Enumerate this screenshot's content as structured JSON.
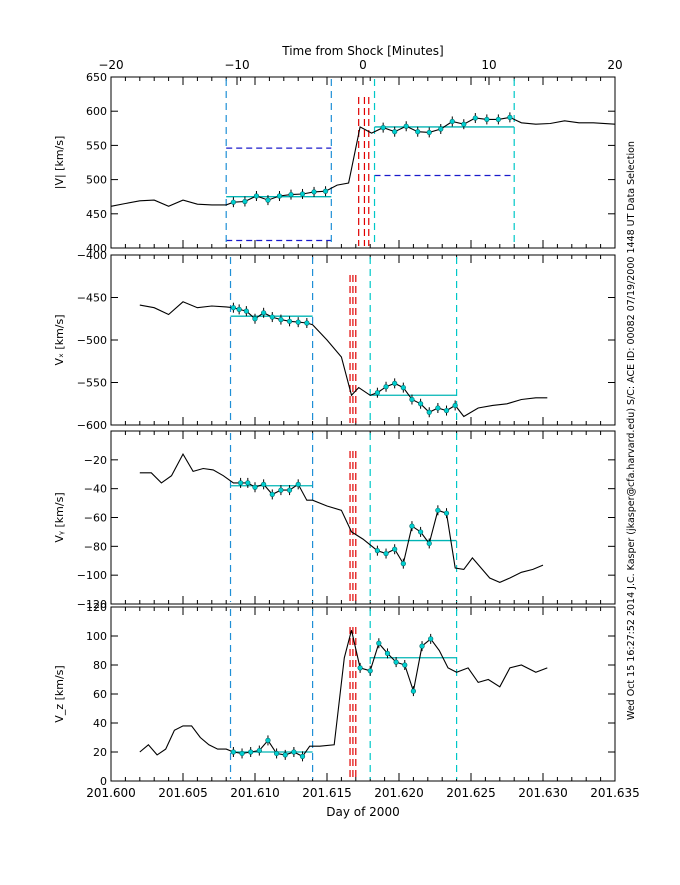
{
  "figure": {
    "top_axis_title": "Time from Shock [Minutes]",
    "bottom_axis_title": "Day of 2000",
    "side_text": "Wed Oct 15 16:27:52 2014   J.C. Kasper (jkasper@cfa.harvard.edu)   S/C: ACE ID: 00082 07/19/2000   1448 UT Data Selection",
    "top_ticks": [
      "−20",
      "−10",
      "0",
      "10",
      "20"
    ],
    "top_tick_values": [
      -20,
      -10,
      0,
      10,
      20
    ],
    "bottom_ticks": [
      "201.600",
      "201.605",
      "201.610",
      "201.615",
      "201.620",
      "201.625",
      "201.630",
      "201.635"
    ],
    "bottom_tick_values": [
      201.6,
      201.605,
      201.61,
      201.615,
      201.62,
      201.625,
      201.63,
      201.635
    ],
    "colors": {
      "trace": "#000000",
      "upstream_window": "#1f8fd6",
      "downstream_window": "#00c8c8",
      "shock_marker": "#e00000",
      "range_guide": "#1a1acc",
      "fit_line": "#00b4b4"
    }
  },
  "chart_data": [
    {
      "type": "line",
      "id": "speed",
      "ylabel": "|V| [km/s]",
      "ylim": [
        400,
        650
      ],
      "yticks": [
        400,
        450,
        500,
        550,
        600,
        650
      ],
      "xlim": [
        201.6,
        201.635
      ],
      "series": [
        {
          "name": "|V|",
          "x": [
            201.6,
            201.601,
            201.602,
            201.603,
            201.604,
            201.605,
            201.606,
            201.607,
            201.608,
            201.6085,
            201.6093,
            201.6101,
            201.6109,
            201.6117,
            201.6125,
            201.6133,
            201.6141,
            201.6149,
            201.6157,
            201.6165,
            201.6173,
            201.6181,
            201.6189,
            201.6197,
            201.6205,
            201.6213,
            201.6221,
            201.6229,
            201.6237,
            201.6245,
            201.6253,
            201.6261,
            201.6269,
            201.6277,
            201.6285,
            201.6295,
            201.6305,
            201.6315,
            201.6325,
            201.6335,
            201.635
          ],
          "values": [
            461,
            465,
            469,
            470,
            461,
            470,
            464,
            463,
            463,
            467,
            468,
            476,
            470,
            476,
            478,
            479,
            482,
            483,
            492,
            495,
            577,
            568,
            576,
            570,
            578,
            570,
            569,
            574,
            585,
            581,
            590,
            588,
            588,
            591,
            583,
            581,
            582,
            586,
            583,
            583,
            581
          ]
        }
      ],
      "upstream_points": {
        "x": [
          201.6085,
          201.6093,
          201.6101,
          201.6109,
          201.6117,
          201.6125,
          201.6133,
          201.6141,
          201.6149
        ],
        "values": [
          467,
          468,
          476,
          470,
          476,
          478,
          479,
          482,
          483
        ]
      },
      "downstream_points": {
        "x": [
          201.6189,
          201.6197,
          201.6205,
          201.6213,
          201.6221,
          201.6229,
          201.6237,
          201.6245,
          201.6253,
          201.6261,
          201.6269,
          201.6277
        ],
        "values": [
          576,
          570,
          578,
          570,
          569,
          574,
          585,
          581,
          590,
          588,
          588,
          591
        ]
      },
      "upstream_window": [
        201.608,
        201.6153
      ],
      "downstream_window": [
        201.6183,
        201.628
      ],
      "shock_markers": [
        201.6172,
        201.6176,
        201.6179
      ],
      "upstream_mean": 475,
      "downstream_mean": 577,
      "range_guides": [
        {
          "x": [
            201.608,
            201.6153
          ],
          "y": 546
        },
        {
          "x": [
            201.608,
            201.6153
          ],
          "y": 411
        },
        {
          "x": [
            201.6183,
            201.628
          ],
          "y": 506
        }
      ]
    },
    {
      "type": "line",
      "id": "vx",
      "ylabel": "Vₓ [km/s]",
      "ylim": [
        -600,
        -400
      ],
      "yticks": [
        -600,
        -550,
        -500,
        -450,
        -400
      ],
      "xlim": [
        201.6,
        201.635
      ],
      "series": [
        {
          "name": "Vx",
          "x": [
            201.602,
            201.603,
            201.604,
            201.605,
            201.606,
            201.607,
            201.608,
            201.6085,
            201.6089,
            201.6094,
            201.61,
            201.6106,
            201.6112,
            201.6118,
            201.6124,
            201.613,
            201.6136,
            201.614,
            201.615,
            201.616,
            201.6167,
            201.6172,
            201.618,
            201.6185,
            201.6191,
            201.6197,
            201.6203,
            201.6209,
            201.6215,
            201.6221,
            201.6227,
            201.6233,
            201.6239,
            201.6245,
            201.6255,
            201.6265,
            201.6275,
            201.6285,
            201.6295,
            201.6303
          ],
          "values": [
            -459,
            -462,
            -470,
            -455,
            -462,
            -460,
            -461,
            -462,
            -464,
            -466,
            -475,
            -468,
            -473,
            -476,
            -478,
            -479,
            -480,
            -482,
            -500,
            -520,
            -565,
            -556,
            -565,
            -562,
            -555,
            -551,
            -556,
            -570,
            -575,
            -585,
            -580,
            -583,
            -577,
            -590,
            -580,
            -577,
            -575,
            -570,
            -568,
            -568
          ]
        }
      ],
      "upstream_points": {
        "x": [
          201.6085,
          201.6089,
          201.6094,
          201.61,
          201.6106,
          201.6112,
          201.6118,
          201.6124,
          201.613,
          201.6136
        ],
        "values": [
          -462,
          -464,
          -466,
          -475,
          -468,
          -473,
          -476,
          -478,
          -479,
          -480
        ]
      },
      "downstream_points": {
        "x": [
          201.6185,
          201.6191,
          201.6197,
          201.6203,
          201.6209,
          201.6215,
          201.6221,
          201.6227,
          201.6233,
          201.6239
        ],
        "values": [
          -562,
          -555,
          -551,
          -556,
          -570,
          -575,
          -585,
          -580,
          -583,
          -577
        ]
      },
      "upstream_window": [
        201.6083,
        201.614
      ],
      "downstream_window": [
        201.618,
        201.624
      ],
      "shock_markers": [
        201.6166,
        201.6168,
        201.617
      ],
      "upstream_mean": -472,
      "downstream_mean": -565,
      "range_guides": []
    },
    {
      "type": "line",
      "id": "vy",
      "ylabel": "Vᵧ [km/s]",
      "ylim": [
        -120,
        0
      ],
      "yticks": [
        -120,
        -100,
        -80,
        -60,
        -40,
        -20
      ],
      "xlim": [
        201.6,
        201.635
      ],
      "series": [
        {
          "name": "Vy",
          "x": [
            201.602,
            201.6028,
            201.6035,
            201.6042,
            201.605,
            201.6057,
            201.6064,
            201.6071,
            201.6078,
            201.6085,
            201.609,
            201.6095,
            201.61,
            201.6106,
            201.6112,
            201.6118,
            201.6124,
            201.613,
            201.6136,
            201.614,
            201.615,
            201.616,
            201.6167,
            201.6175,
            201.6185,
            201.6191,
            201.6197,
            201.6203,
            201.6209,
            201.6215,
            201.6221,
            201.6227,
            201.6233,
            201.6239,
            201.6245,
            201.6251,
            201.6257,
            201.6263,
            201.627,
            201.6277,
            201.6285,
            201.6293,
            201.63
          ],
          "values": [
            -29,
            -29,
            -36,
            -31,
            -16,
            -28,
            -26,
            -27,
            -31,
            -36,
            -36,
            -36,
            -39,
            -37,
            -44,
            -41,
            -41,
            -37,
            -48,
            -48,
            -52,
            -55,
            -70,
            -75,
            -83,
            -85,
            -82,
            -92,
            -66,
            -70,
            -78,
            -55,
            -57,
            -95,
            -96,
            -88,
            -95,
            -102,
            -105,
            -102,
            -98,
            -96,
            -93
          ]
        }
      ],
      "upstream_points": {
        "x": [
          201.609,
          201.6095,
          201.61,
          201.6106,
          201.6112,
          201.6118,
          201.6124,
          201.613
        ],
        "values": [
          -36,
          -36,
          -39,
          -37,
          -44,
          -41,
          -41,
          -37
        ]
      },
      "downstream_points": {
        "x": [
          201.6185,
          201.6191,
          201.6197,
          201.6203,
          201.6209,
          201.6215,
          201.6221,
          201.6227,
          201.6233
        ],
        "values": [
          -83,
          -85,
          -82,
          -92,
          -66,
          -70,
          -78,
          -55,
          -57
        ]
      },
      "upstream_window": [
        201.6083,
        201.614
      ],
      "downstream_window": [
        201.618,
        201.624
      ],
      "shock_markers": [
        201.6166,
        201.6168,
        201.617
      ],
      "upstream_mean": -38,
      "downstream_mean": -76,
      "range_guides": []
    },
    {
      "type": "line",
      "id": "vz",
      "ylabel": "V_z [km/s]",
      "ylim": [
        0,
        120
      ],
      "yticks": [
        0,
        20,
        40,
        60,
        80,
        100,
        120
      ],
      "xlim": [
        201.6,
        201.635
      ],
      "series": [
        {
          "name": "Vz",
          "x": [
            201.602,
            201.6026,
            201.6032,
            201.6038,
            201.6044,
            201.605,
            201.6056,
            201.6062,
            201.6068,
            201.6074,
            201.608,
            201.6085,
            201.6091,
            201.6097,
            201.6103,
            201.6109,
            201.6115,
            201.6121,
            201.6127,
            201.6133,
            201.6138,
            201.6145,
            201.6155,
            201.6162,
            201.6167,
            201.6173,
            201.618,
            201.6186,
            201.6192,
            201.6198,
            201.6204,
            201.621,
            201.6216,
            201.6222,
            201.6228,
            201.6234,
            201.624,
            201.6248,
            201.6255,
            201.6262,
            201.627,
            201.6277,
            201.6285,
            201.6295,
            201.6303
          ],
          "values": [
            20,
            25,
            18,
            22,
            35,
            38,
            38,
            30,
            25,
            22,
            22,
            20,
            19,
            20,
            21,
            28,
            19,
            18,
            20,
            17,
            24,
            24,
            25,
            85,
            104,
            78,
            76,
            95,
            88,
            82,
            80,
            62,
            93,
            98,
            90,
            78,
            75,
            78,
            68,
            70,
            65,
            78,
            80,
            75,
            78
          ]
        }
      ],
      "upstream_points": {
        "x": [
          201.6085,
          201.6091,
          201.6097,
          201.6103,
          201.6109,
          201.6115,
          201.6121,
          201.6127,
          201.6133
        ],
        "values": [
          20,
          19,
          20,
          21,
          28,
          19,
          18,
          20,
          17
        ]
      },
      "downstream_points": {
        "x": [
          201.6173,
          201.618,
          201.6186,
          201.6192,
          201.6198,
          201.6204,
          201.621,
          201.6216,
          201.6222
        ],
        "values": [
          78,
          76,
          95,
          88,
          82,
          80,
          62,
          93,
          98
        ]
      },
      "upstream_window": [
        201.6083,
        201.614
      ],
      "downstream_window": [
        201.618,
        201.624
      ],
      "shock_markers": [
        201.6166,
        201.6168,
        201.617
      ],
      "upstream_mean": 20,
      "downstream_mean": 85,
      "range_guides": []
    }
  ]
}
